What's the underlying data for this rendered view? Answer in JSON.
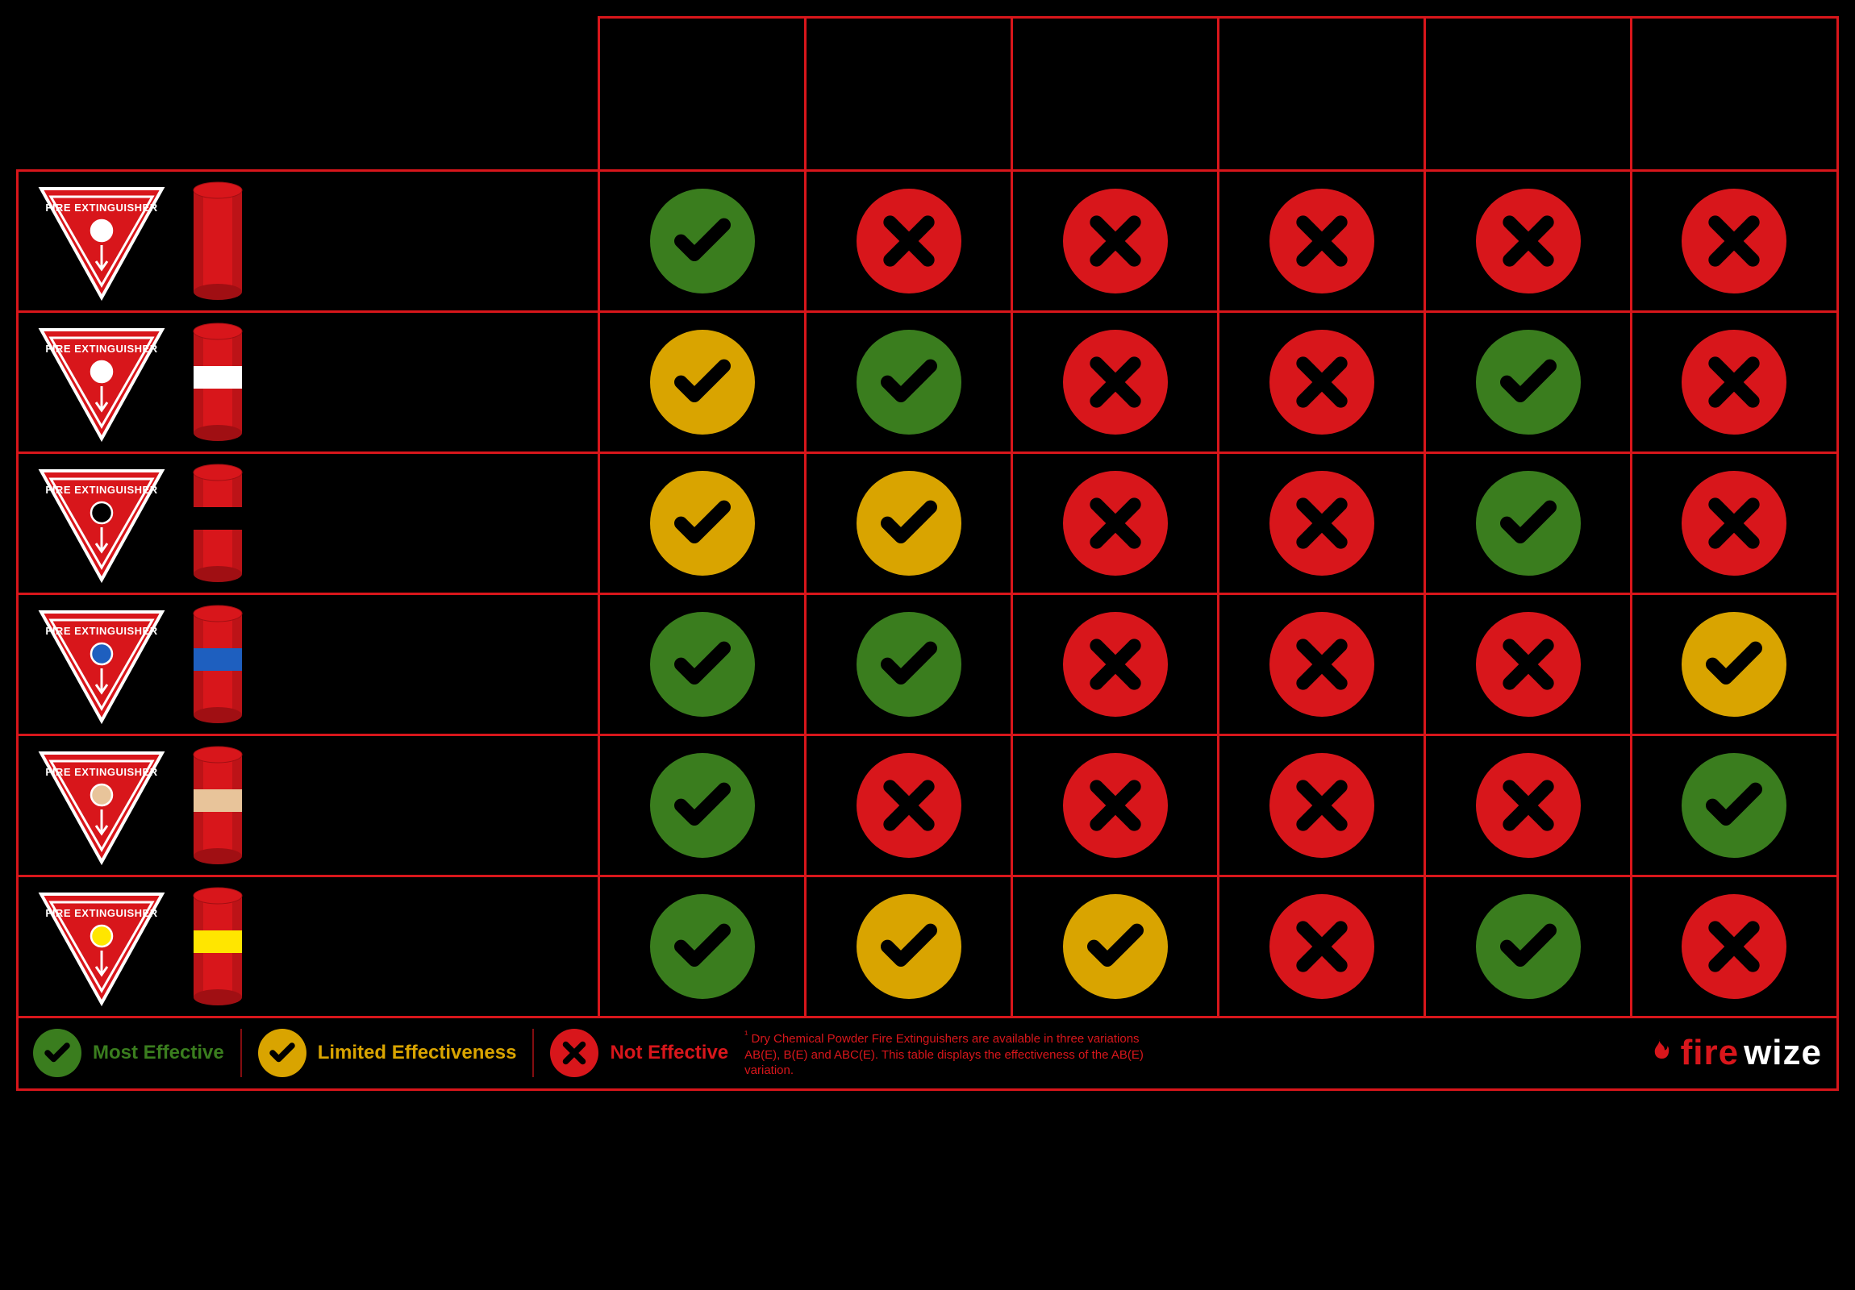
{
  "colors": {
    "border": "#d8161b",
    "green": "#3a7d1e",
    "yellow": "#d9a400",
    "red": "#d8161b",
    "black": "#000000",
    "white": "#ffffff",
    "ext_body": "#d8161b",
    "ext_body_dark": "#a00f13"
  },
  "extinguishers": [
    {
      "id": "water",
      "triangle_circle": "#ffffff",
      "band": null,
      "band_text": "#000000"
    },
    {
      "id": "dcp",
      "triangle_circle": "#ffffff",
      "band": "#ffffff",
      "band_text": "#000000"
    },
    {
      "id": "co2",
      "triangle_circle": "#000000",
      "band": "#000000",
      "band_text": "#ffffff"
    },
    {
      "id": "foam",
      "triangle_circle": "#1e5fbf",
      "band": "#1e5fbf",
      "band_text": "#ffffff"
    },
    {
      "id": "wetchem",
      "triangle_circle": "#e8c49a",
      "band": "#e8c49a",
      "band_text": "#000000"
    },
    {
      "id": "halon",
      "triangle_circle": "#ffe600",
      "band": "#ffe600",
      "band_text": "#000000"
    }
  ],
  "column_count": 6,
  "matrix": [
    [
      "green",
      "red",
      "red",
      "red",
      "red",
      "red"
    ],
    [
      "yellow",
      "green",
      "red",
      "red",
      "green",
      "red"
    ],
    [
      "yellow",
      "yellow",
      "red",
      "red",
      "green",
      "red"
    ],
    [
      "green",
      "green",
      "red",
      "red",
      "red",
      "yellow"
    ],
    [
      "green",
      "red",
      "red",
      "red",
      "red",
      "green"
    ],
    [
      "green",
      "yellow",
      "yellow",
      "red",
      "green",
      "red"
    ]
  ],
  "legend": {
    "most": {
      "label": "Most Effective",
      "color_key": "green"
    },
    "limited": {
      "label": "Limited Effectiveness",
      "color_key": "yellow"
    },
    "not": {
      "label": "Not Effective",
      "color_key": "red"
    }
  },
  "footnote_sup": "¹",
  "footnote": "Dry Chemical Powder Fire Extinguishers are available in three variations AB(E), B(E) and ABC(E).  This table displays the effectiveness of the AB(E) variation.",
  "brand": {
    "part1": "fire",
    "part2": "wize"
  },
  "triangle_label": "FIRE EXTINGUISHER"
}
